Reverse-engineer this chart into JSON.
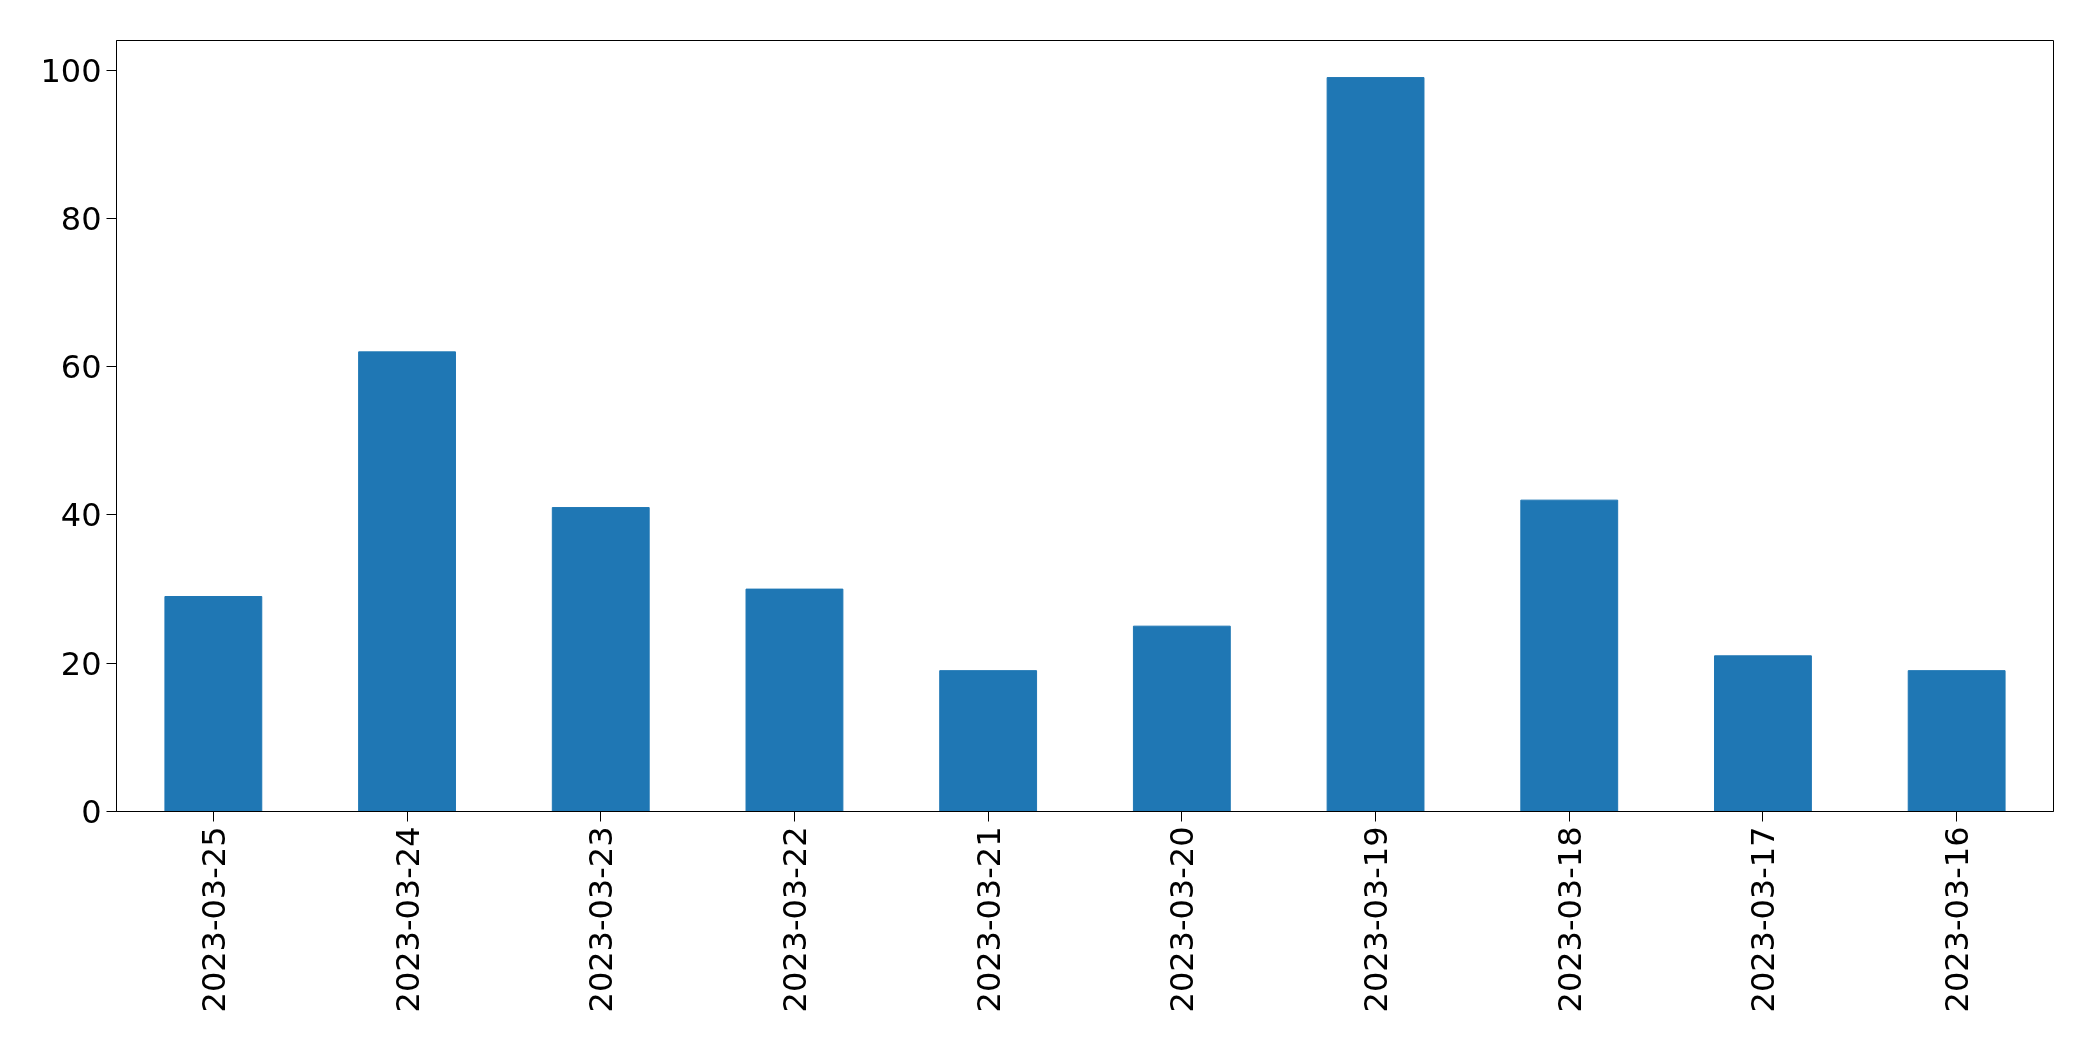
{
  "chart_data": {
    "type": "bar",
    "categories": [
      "2023-03-25",
      "2023-03-24",
      "2023-03-23",
      "2023-03-22",
      "2023-03-21",
      "2023-03-20",
      "2023-03-19",
      "2023-03-18",
      "2023-03-17",
      "2023-03-16"
    ],
    "values": [
      29,
      62,
      41,
      30,
      19,
      25,
      99,
      42,
      21,
      19
    ],
    "color": "#1f77b4",
    "ylim": [
      0,
      104
    ],
    "yticks": [
      0,
      20,
      40,
      60,
      80,
      100
    ],
    "grid": false
  }
}
